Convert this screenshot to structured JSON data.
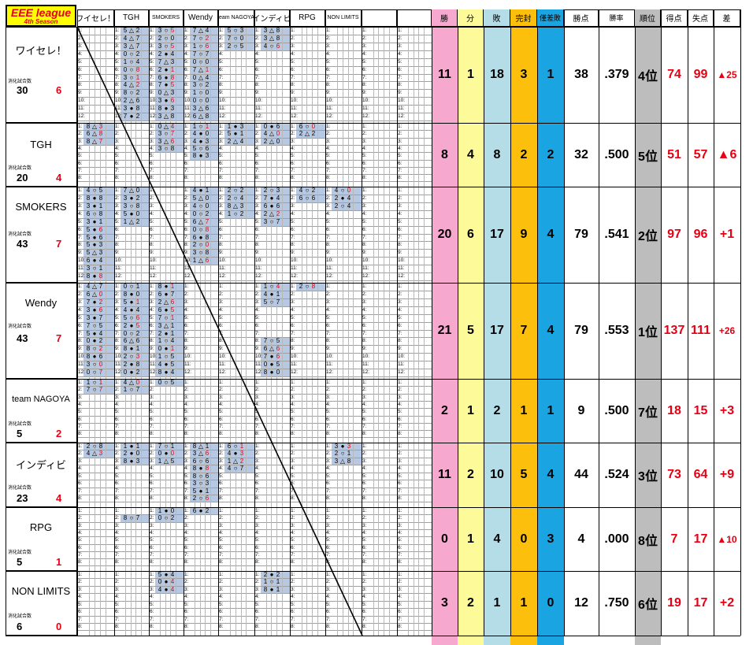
{
  "league": {
    "name": "EEE league",
    "season": "4th Season"
  },
  "columns": {
    "teams_short": [
      "ワイセレ！",
      "TGH",
      "SMOKERS",
      "Wendy",
      "team NAGOYA",
      "インディビ",
      "RPG",
      "NON LIMITS"
    ],
    "stats": [
      "勝",
      "分",
      "敗",
      "完封",
      "僅差敗",
      "勝点",
      "勝率",
      "順位",
      "得点",
      "失点",
      "差"
    ]
  },
  "played_label": "消化試合数",
  "teams": [
    {
      "name": "ワイセレ！",
      "played": "30",
      "remaining": "6",
      "w": "11",
      "d": "1",
      "l": "18",
      "shutout": "3",
      "close_loss": "1",
      "pts": "38",
      "pct": ".379",
      "rank": "4位",
      "gf": "74",
      "ga": "99",
      "diff": "▲25"
    },
    {
      "name": "TGH",
      "played": "20",
      "remaining": "4",
      "w": "8",
      "d": "4",
      "l": "8",
      "shutout": "2",
      "close_loss": "2",
      "pts": "32",
      "pct": ".500",
      "rank": "5位",
      "gf": "51",
      "ga": "57",
      "diff": "▲6"
    },
    {
      "name": "SMOKERS",
      "played": "43",
      "remaining": "7",
      "w": "20",
      "d": "6",
      "l": "17",
      "shutout": "9",
      "close_loss": "4",
      "pts": "79",
      "pct": ".541",
      "rank": "2位",
      "gf": "97",
      "ga": "96",
      "diff": "+1"
    },
    {
      "name": "Wendy",
      "played": "43",
      "remaining": "7",
      "w": "21",
      "d": "5",
      "l": "17",
      "shutout": "7",
      "close_loss": "4",
      "pts": "79",
      "pct": ".553",
      "rank": "1位",
      "gf": "137",
      "ga": "111",
      "diff": "+26"
    },
    {
      "name": "team NAGOYA",
      "played": "5",
      "remaining": "2",
      "w": "2",
      "d": "1",
      "l": "2",
      "shutout": "1",
      "close_loss": "1",
      "pts": "9",
      "pct": ".500",
      "rank": "7位",
      "gf": "18",
      "ga": "15",
      "diff": "+3"
    },
    {
      "name": "インディビ",
      "played": "23",
      "remaining": "4",
      "w": "11",
      "d": "2",
      "l": "10",
      "shutout": "5",
      "close_loss": "4",
      "pts": "44",
      "pct": ".524",
      "rank": "3位",
      "gf": "73",
      "ga": "64",
      "diff": "+9"
    },
    {
      "name": "RPG",
      "played": "5",
      "remaining": "1",
      "w": "0",
      "d": "1",
      "l": "4",
      "shutout": "0",
      "close_loss": "3",
      "pts": "4",
      "pct": ".000",
      "rank": "8位",
      "gf": "7",
      "ga": "17",
      "diff": "▲10"
    },
    {
      "name": "NON LIMITS",
      "played": "6",
      "remaining": "0",
      "w": "3",
      "d": "2",
      "l": "1",
      "shutout": "1",
      "close_loss": "0",
      "pts": "12",
      "pct": ".750",
      "rank": "6位",
      "gf": "19",
      "ga": "17",
      "diff": "+2"
    }
  ],
  "colors": {
    "w": "#f7a8cf",
    "d": "#fdfa9a",
    "l": "#b4dde8",
    "shutout": "#fbbf0c",
    "close_loss": "#1aa5e2",
    "rank": "#bdbdbd",
    "blue_cell": "#b7c9e2",
    "logo_bg": "#ffff00",
    "accent_red": "#e60012"
  }
}
